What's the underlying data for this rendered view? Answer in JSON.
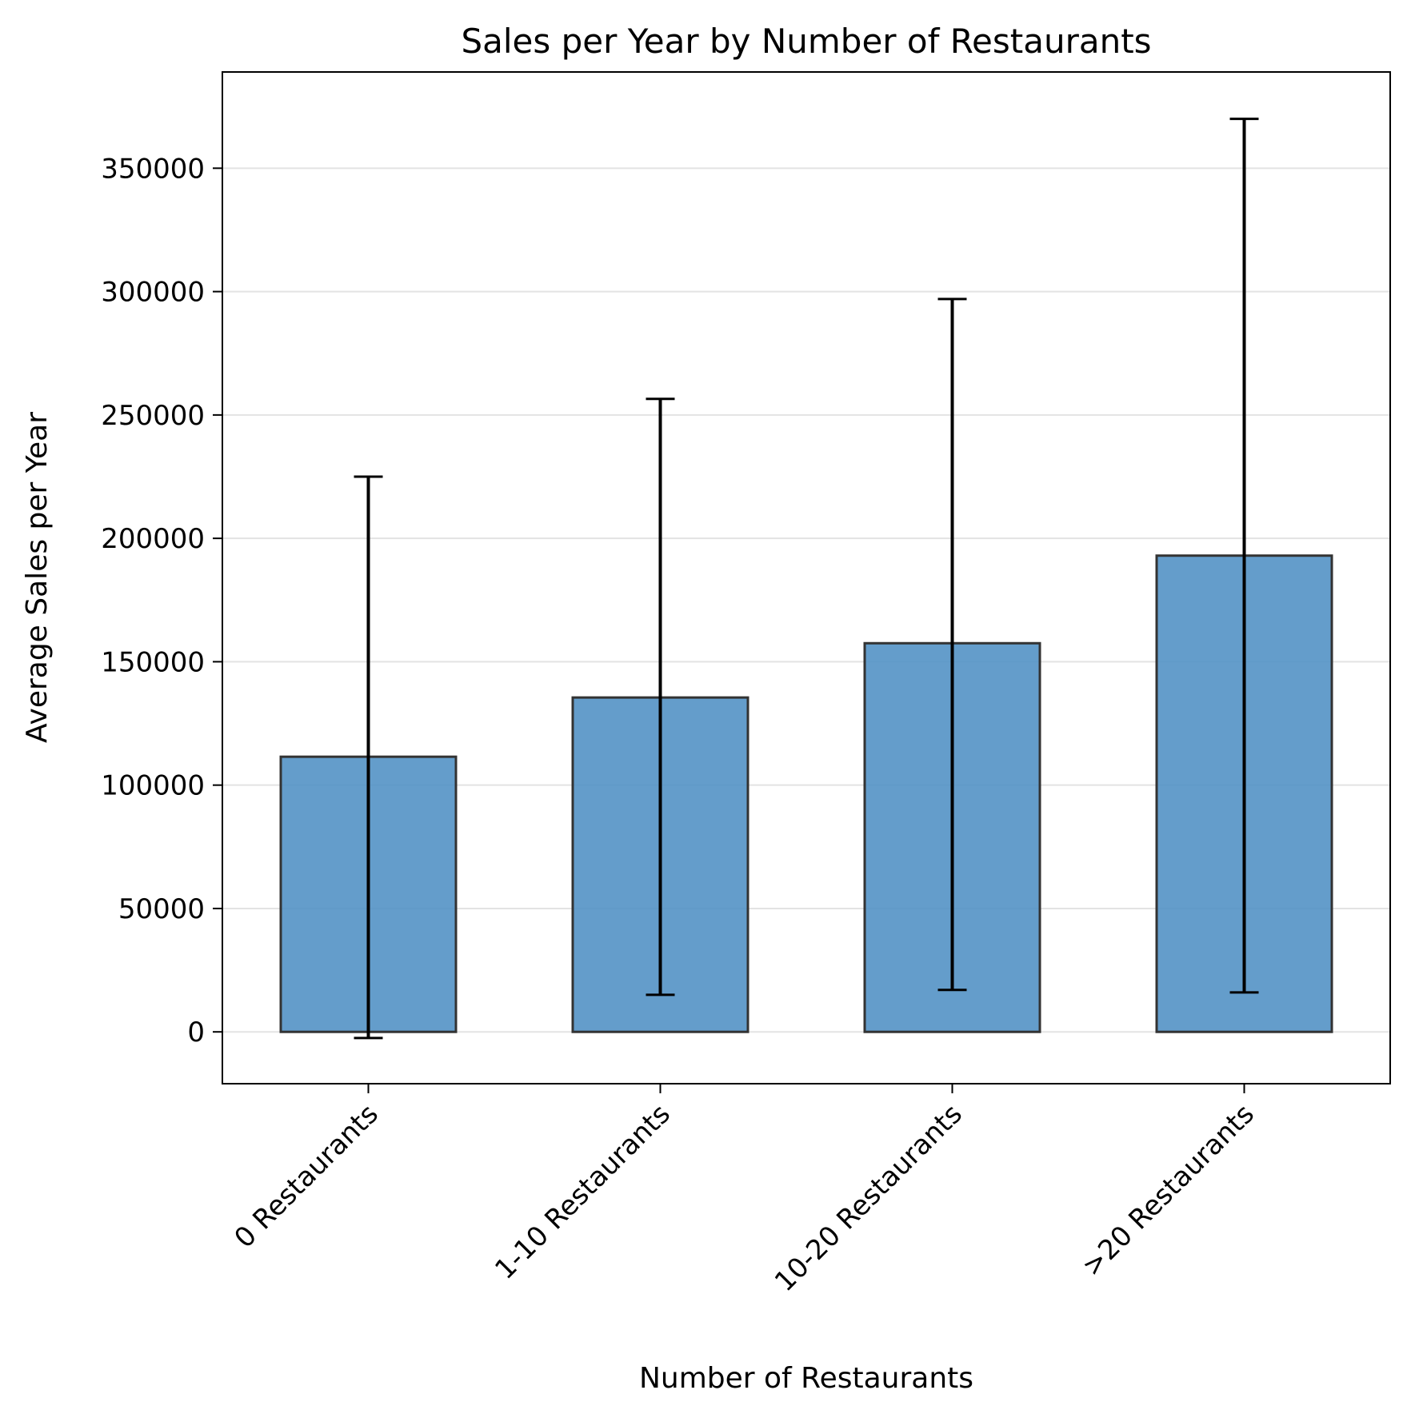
{
  "chart_data": {
    "type": "bar",
    "title": "Sales per Year by Number of Restaurants",
    "xlabel": "Number of Restaurants",
    "ylabel": "Average Sales per Year",
    "categories": [
      "0 Restaurants",
      "1-10 Restaurants",
      "10-20 Restaurants",
      ">20 Restaurants"
    ],
    "values": [
      111500,
      135500,
      157500,
      193000
    ],
    "error_bars": [
      {
        "low": -2500,
        "high": 225000
      },
      {
        "low": 15000,
        "high": 256500
      },
      {
        "low": 17000,
        "high": 297000
      },
      {
        "low": 16000,
        "high": 370000
      }
    ],
    "ylim": [
      -21000,
      389000
    ],
    "yticks": [
      0,
      50000,
      100000,
      150000,
      200000,
      250000,
      300000,
      350000
    ],
    "grid": "horizontal",
    "bar_color": "#4f8fc4",
    "bar_edge_color": "#333333",
    "error_color": "#000000"
  }
}
